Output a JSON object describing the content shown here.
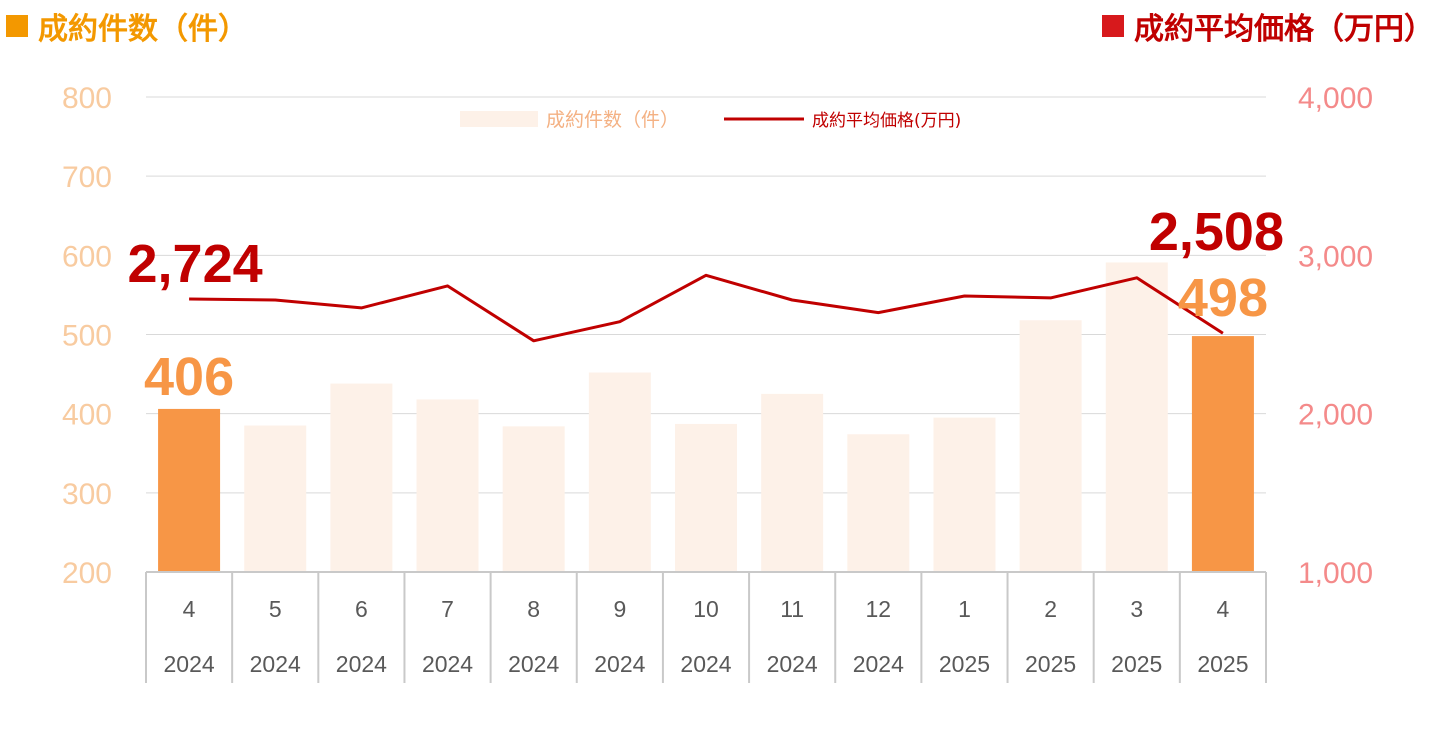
{
  "header": {
    "left_title": "成約件数（件）",
    "right_title": "成約平均価格（万円）"
  },
  "legend": {
    "bars": "成約件数（件）",
    "line": "成約平均価格(万円)"
  },
  "colors": {
    "bar_highlight": "#f79646",
    "bar_faded": "#fdf1e8",
    "line": "#c00000",
    "left_axis": "#f8cba0",
    "right_axis": "#f48a8a",
    "header_left": "#f39800",
    "header_right": "#c00000"
  },
  "chart_data": {
    "type": "bar",
    "categories": [
      {
        "month": "4",
        "year": "2024"
      },
      {
        "month": "5",
        "year": "2024"
      },
      {
        "month": "6",
        "year": "2024"
      },
      {
        "month": "7",
        "year": "2024"
      },
      {
        "month": "8",
        "year": "2024"
      },
      {
        "month": "9",
        "year": "2024"
      },
      {
        "month": "10",
        "year": "2024"
      },
      {
        "month": "11",
        "year": "2024"
      },
      {
        "month": "12",
        "year": "2024"
      },
      {
        "month": "1",
        "year": "2025"
      },
      {
        "month": "2",
        "year": "2025"
      },
      {
        "month": "3",
        "year": "2025"
      },
      {
        "month": "4",
        "year": "2025"
      }
    ],
    "series": [
      {
        "name": "成約件数（件）",
        "type": "bar",
        "axis": "left",
        "values": [
          406,
          385,
          438,
          418,
          384,
          452,
          387,
          425,
          374,
          395,
          518,
          591,
          498
        ],
        "highlight": [
          true,
          false,
          false,
          false,
          false,
          false,
          false,
          false,
          false,
          false,
          false,
          false,
          true
        ]
      },
      {
        "name": "成約平均価格(万円)",
        "type": "line",
        "axis": "right",
        "values": [
          2724,
          2718,
          2668,
          2807,
          2460,
          2581,
          2874,
          2718,
          2638,
          2743,
          2731,
          2858,
          2508
        ]
      }
    ],
    "left_axis": {
      "min": 200,
      "max": 800,
      "ticks": [
        "200",
        "300",
        "400",
        "500",
        "600",
        "700",
        "800"
      ]
    },
    "right_axis": {
      "min": 1000,
      "max": 4000,
      "ticks": [
        "1,000",
        "2,000",
        "3,000",
        "4,000"
      ]
    },
    "annotations": [
      {
        "text": "2,724",
        "series": 1,
        "index": 0
      },
      {
        "text": "406",
        "series": 0,
        "index": 0
      },
      {
        "text": "2,508",
        "series": 1,
        "index": 12
      },
      {
        "text": "498",
        "series": 0,
        "index": 12
      }
    ],
    "grid": true,
    "legend_position": "top"
  }
}
